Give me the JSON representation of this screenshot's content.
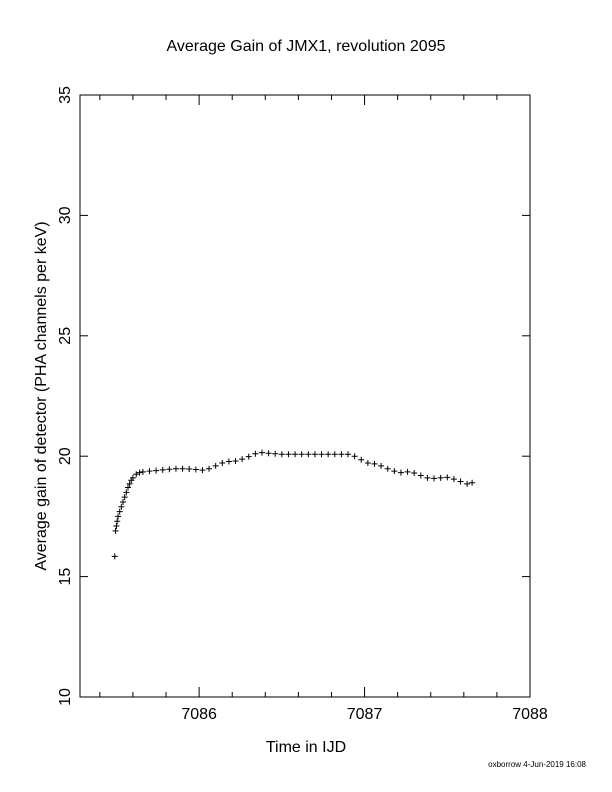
{
  "chart_data": {
    "type": "scatter",
    "title": "Average Gain of JMX1, revolution 2095",
    "x_label": "Time in IJD",
    "y_label": "Average gain of detector (PHA channels per keV)",
    "footer": "oxborrow  4-Jun-2019 16:08",
    "marker": "+",
    "color": "#000000",
    "xlim": [
      7085.28,
      7088
    ],
    "ylim": [
      10,
      35
    ],
    "xticks": [
      7086,
      7087,
      7088
    ],
    "x_minor_ticks": [
      7085.4,
      7085.6,
      7085.8,
      7086.2,
      7086.4,
      7086.6,
      7086.8,
      7087.2,
      7087.4,
      7087.6,
      7087.8
    ],
    "yticks": [
      10,
      15,
      20,
      25,
      30,
      35
    ],
    "x": [
      7085.49,
      7085.495,
      7085.5,
      7085.505,
      7085.51,
      7085.52,
      7085.53,
      7085.54,
      7085.55,
      7085.56,
      7085.57,
      7085.58,
      7085.59,
      7085.6,
      7085.62,
      7085.64,
      7085.66,
      7085.7,
      7085.74,
      7085.78,
      7085.82,
      7085.86,
      7085.9,
      7085.94,
      7085.98,
      7086.02,
      7086.06,
      7086.1,
      7086.14,
      7086.18,
      7086.22,
      7086.26,
      7086.3,
      7086.34,
      7086.38,
      7086.42,
      7086.46,
      7086.5,
      7086.54,
      7086.58,
      7086.62,
      7086.66,
      7086.7,
      7086.74,
      7086.78,
      7086.82,
      7086.86,
      7086.9,
      7086.94,
      7086.98,
      7087.02,
      7087.06,
      7087.1,
      7087.14,
      7087.18,
      7087.22,
      7087.26,
      7087.3,
      7087.34,
      7087.38,
      7087.42,
      7087.46,
      7087.5,
      7087.54,
      7087.58,
      7087.62,
      7087.65
    ],
    "values": [
      15.84,
      16.9,
      17.1,
      17.3,
      17.5,
      17.7,
      17.9,
      18.1,
      18.3,
      18.5,
      18.7,
      18.85,
      19.0,
      19.1,
      19.25,
      19.32,
      19.35,
      19.38,
      19.4,
      19.43,
      19.46,
      19.48,
      19.48,
      19.47,
      19.45,
      19.42,
      19.48,
      19.6,
      19.72,
      19.78,
      19.8,
      19.88,
      19.98,
      20.1,
      20.15,
      20.12,
      20.1,
      20.08,
      20.08,
      20.08,
      20.08,
      20.08,
      20.08,
      20.08,
      20.08,
      20.08,
      20.08,
      20.08,
      20.0,
      19.85,
      19.72,
      19.68,
      19.6,
      19.48,
      19.38,
      19.32,
      19.35,
      19.3,
      19.2,
      19.1,
      19.08,
      19.1,
      19.12,
      19.05,
      18.95,
      18.85,
      18.9
    ]
  }
}
